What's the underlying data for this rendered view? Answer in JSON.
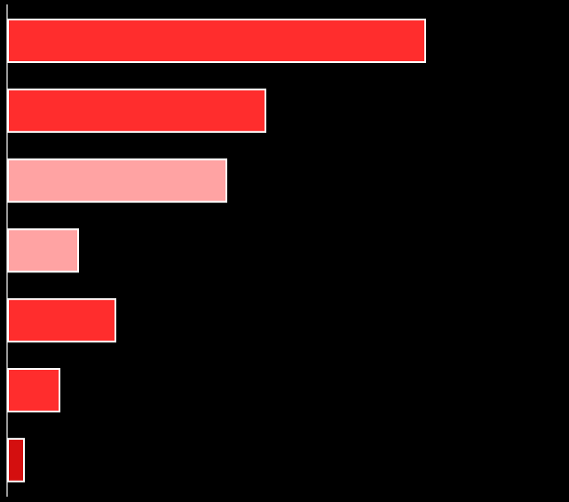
{
  "chart_data": {
    "type": "hbar",
    "values": [
      470,
      290,
      246,
      79,
      121,
      58,
      18
    ],
    "colors": [
      "#ff2d2d",
      "#ff2d2d",
      "#ffa3a3",
      "#ffa3a3",
      "#ff2d2d",
      "#ff2d2d",
      "#d40f0f"
    ],
    "xlim": [
      0,
      632
    ]
  }
}
